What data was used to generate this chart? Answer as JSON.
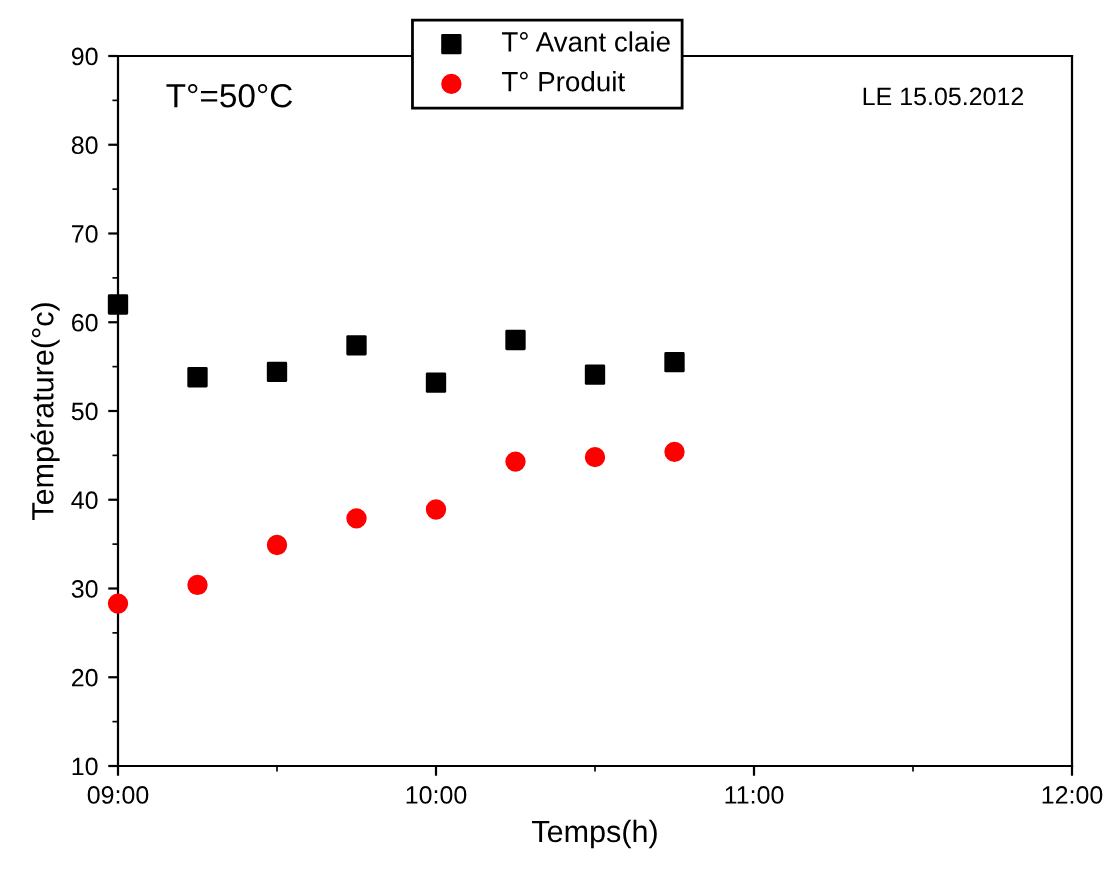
{
  "chart_data": {
    "type": "scatter",
    "xlabel": "Temps(h)",
    "ylabel": "Température(°c)",
    "annotations": [
      "T°=50°C",
      "LE 15.05.2012"
    ],
    "x": [
      9,
      9.25,
      9.5,
      9.75,
      10,
      10.25,
      10.5,
      10.75
    ],
    "series": [
      {
        "name": "T° Avant claie",
        "color": "#000000",
        "marker": "square",
        "values": [
          62.0,
          53.8,
          54.4,
          57.4,
          53.2,
          58.0,
          54.1,
          55.5
        ]
      },
      {
        "name": "T° Produit",
        "color": "#ff0000",
        "marker": "circle",
        "values": [
          28.3,
          30.4,
          34.9,
          37.9,
          38.9,
          44.3,
          44.8,
          45.4
        ]
      }
    ],
    "xlim": [
      9,
      12
    ],
    "xticks": [
      {
        "value": 9,
        "label": "09:00"
      },
      {
        "value": 10,
        "label": "10:00"
      },
      {
        "value": 11,
        "label": "11:00"
      },
      {
        "value": 12,
        "label": "12:00"
      }
    ],
    "ylim": [
      10,
      90
    ],
    "yticks": [
      10,
      20,
      30,
      40,
      50,
      60,
      70,
      80,
      90
    ],
    "grid": false,
    "legend": "top"
  }
}
